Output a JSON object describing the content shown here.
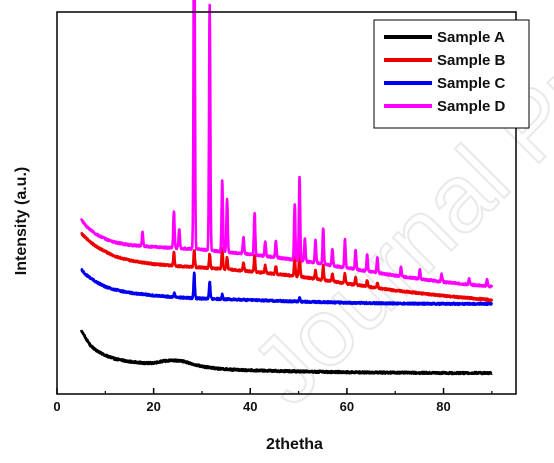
{
  "chart_data": {
    "type": "line",
    "title": "",
    "xlabel": "2thetha",
    "ylabel": "Intensity (a.u.)",
    "xlim": [
      0,
      95
    ],
    "ylim": [
      0,
      100
    ],
    "xticks": [
      "0",
      "20",
      "40",
      "60",
      "80"
    ],
    "xtick_values": [
      0,
      20,
      40,
      60,
      80
    ],
    "yticks_shown": false,
    "grid": false,
    "legend_position": "top-right",
    "x_range": [
      5,
      90
    ],
    "series": [
      {
        "name": "Sample A",
        "color": "#000000",
        "baseline": [
          [
            5,
            16.8
          ],
          [
            6,
            14.5
          ],
          [
            7,
            12.6
          ],
          [
            8,
            11.5
          ],
          [
            10,
            10.1
          ],
          [
            12,
            9.2
          ],
          [
            15,
            8.5
          ],
          [
            18,
            8.1
          ],
          [
            20,
            8.1
          ],
          [
            22,
            8.6
          ],
          [
            24,
            8.8
          ],
          [
            26,
            8.6
          ],
          [
            28,
            7.9
          ],
          [
            30,
            7.2
          ],
          [
            33,
            6.7
          ],
          [
            36,
            6.4
          ],
          [
            40,
            6.2
          ],
          [
            50,
            5.9
          ],
          [
            60,
            5.7
          ],
          [
            70,
            5.6
          ],
          [
            80,
            5.5
          ],
          [
            90,
            5.5
          ]
        ],
        "peaks": []
      },
      {
        "name": "Sample B",
        "color": "#ee0000",
        "baseline": [
          [
            5,
            42.1
          ],
          [
            6,
            40.8
          ],
          [
            8,
            38.7
          ],
          [
            10,
            37.3
          ],
          [
            12,
            36.0
          ],
          [
            15,
            35.0
          ],
          [
            20,
            34.0
          ],
          [
            25,
            33.5
          ],
          [
            30,
            33.1
          ],
          [
            35,
            32.7
          ],
          [
            40,
            32.1
          ],
          [
            50,
            30.8
          ],
          [
            60,
            28.9
          ],
          [
            70,
            27.1
          ],
          [
            80,
            25.7
          ],
          [
            90,
            24.6
          ]
        ],
        "peaks": [
          [
            24.2,
            3.5
          ],
          [
            28.4,
            4.5
          ],
          [
            31.6,
            3.8
          ],
          [
            34.2,
            5.5
          ],
          [
            35.2,
            3.2
          ],
          [
            38.6,
            2.2
          ],
          [
            40.9,
            4.6
          ],
          [
            43.1,
            2.0
          ],
          [
            45.3,
            2.2
          ],
          [
            49.2,
            5.0
          ],
          [
            50.2,
            6.5
          ],
          [
            53.5,
            2.2
          ],
          [
            55.1,
            3.8
          ],
          [
            57.0,
            2.0
          ],
          [
            59.6,
            2.6
          ],
          [
            61.8,
            1.8
          ],
          [
            64.2,
            1.6
          ],
          [
            66.3,
            1.4
          ]
        ]
      },
      {
        "name": "Sample C",
        "color": "#0000ee",
        "baseline": [
          [
            5,
            32.6
          ],
          [
            6,
            31.2
          ],
          [
            8,
            29.4
          ],
          [
            10,
            28.1
          ],
          [
            12,
            27.3
          ],
          [
            15,
            26.5
          ],
          [
            20,
            25.8
          ],
          [
            25,
            25.3
          ],
          [
            30,
            25.0
          ],
          [
            40,
            24.6
          ],
          [
            50,
            24.2
          ],
          [
            60,
            23.9
          ],
          [
            70,
            23.7
          ],
          [
            80,
            23.6
          ],
          [
            90,
            23.6
          ]
        ],
        "peaks": [
          [
            24.3,
            1.0
          ],
          [
            28.4,
            6.5
          ],
          [
            31.6,
            4.5
          ],
          [
            34.2,
            1.2
          ],
          [
            50.2,
            1.0
          ]
        ]
      },
      {
        "name": "Sample D",
        "color": "#ff00ff",
        "baseline": [
          [
            5,
            45.7
          ],
          [
            6,
            44.0
          ],
          [
            8,
            41.9
          ],
          [
            10,
            40.6
          ],
          [
            12,
            39.7
          ],
          [
            15,
            39.0
          ],
          [
            20,
            38.5
          ],
          [
            25,
            38.2
          ],
          [
            30,
            37.8
          ],
          [
            40,
            36.6
          ],
          [
            50,
            35.0
          ],
          [
            60,
            33.0
          ],
          [
            70,
            31.0
          ],
          [
            80,
            29.3
          ],
          [
            90,
            28.1
          ]
        ],
        "peaks": [
          [
            17.7,
            3.5
          ],
          [
            24.2,
            9.5
          ],
          [
            25.3,
            5.0
          ],
          [
            28.4,
            98.5
          ],
          [
            31.6,
            64.0
          ],
          [
            34.2,
            18.5
          ],
          [
            35.2,
            14.0
          ],
          [
            38.6,
            4.5
          ],
          [
            40.9,
            11.0
          ],
          [
            43.1,
            4.0
          ],
          [
            45.3,
            4.2
          ],
          [
            49.2,
            14.5
          ],
          [
            50.2,
            22.0
          ],
          [
            51.3,
            6.0
          ],
          [
            53.5,
            6.0
          ],
          [
            55.1,
            9.5
          ],
          [
            57.0,
            4.5
          ],
          [
            59.6,
            7.5
          ],
          [
            61.8,
            5.0
          ],
          [
            64.2,
            4.5
          ],
          [
            66.3,
            4.0
          ],
          [
            71.2,
            2.5
          ],
          [
            75.1,
            2.5
          ],
          [
            79.6,
            2.0
          ],
          [
            85.3,
            1.5
          ],
          [
            89.0,
            1.8
          ]
        ]
      }
    ],
    "watermark": "Journal Pre-proof"
  }
}
